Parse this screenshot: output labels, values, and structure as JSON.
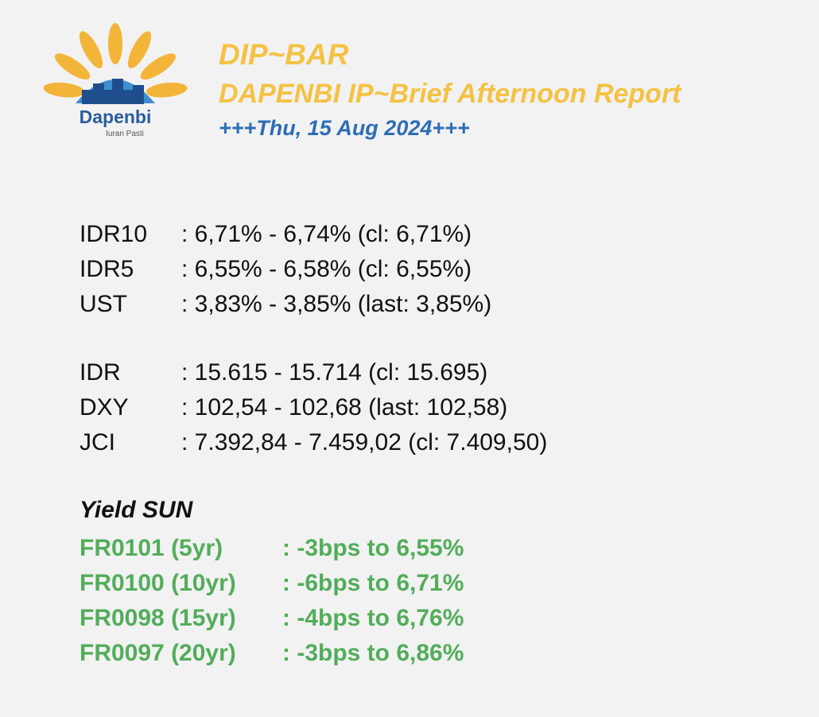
{
  "header": {
    "logo_name": "Dapenbi",
    "logo_tagline": "Iuran Pasti",
    "title": "DIP~BAR",
    "subtitle": "DAPENBI IP~Brief Afternoon Report",
    "date": "+++Thu, 15 Aug 2024+++"
  },
  "rates": {
    "rows": [
      [
        "IDR10",
        ": 6,71% - 6,74% (cl: 6,71%)"
      ],
      [
        "IDR5",
        ": 6,55% - 6,58% (cl: 6,55%)"
      ],
      [
        "UST",
        ": 3,83% - 3,85% (last: 3,85%)"
      ]
    ]
  },
  "markets": {
    "rows": [
      [
        "IDR",
        ": 15.615 - 15.714 (cl: 15.695)"
      ],
      [
        "DXY",
        ": 102,54 - 102,68 (last: 102,58)"
      ],
      [
        "JCI",
        ": 7.392,84 - 7.459,02 (cl: 7.409,50)"
      ]
    ]
  },
  "yield": {
    "title": "Yield SUN",
    "rows": [
      [
        "FR0101 (5yr)",
        ": -3bps to 6,55%"
      ],
      [
        "FR0100 (10yr)",
        ": -6bps to 6,71%"
      ],
      [
        "FR0098 (15yr)",
        ": -4bps to 6,76%"
      ],
      [
        "FR0097 (20yr)",
        ": -3bps to 6,86%"
      ]
    ]
  }
}
